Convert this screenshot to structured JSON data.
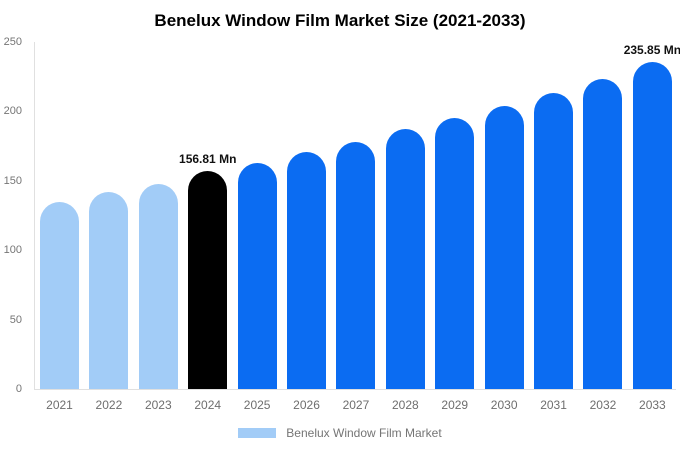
{
  "title": "Benelux Window Film Market Size (2021-2033)",
  "colors": {
    "past": "#A2CCF7",
    "current": "#000000",
    "forecast": "#0B6CF2",
    "axis_line": "#E0E0E0",
    "tick_text": "#757575",
    "label_text": "#111111"
  },
  "legend": {
    "label": "Benelux Window Film Market",
    "swatch_color": "#A2CCF7"
  },
  "chart_data": {
    "type": "bar",
    "title": "Benelux Window Film Market Size (2021-2033)",
    "xlabel": "",
    "ylabel": "",
    "unit": "Mn",
    "ylim": [
      0,
      250
    ],
    "y_ticks": [
      250,
      200,
      150,
      100,
      50,
      0
    ],
    "grid": false,
    "legend_position": "bottom",
    "categories": [
      "2021",
      "2022",
      "2023",
      "2024",
      "2025",
      "2026",
      "2027",
      "2028",
      "2029",
      "2030",
      "2031",
      "2032",
      "2033"
    ],
    "series": [
      {
        "name": "Benelux Window Film Market",
        "values": [
          135,
          142,
          148,
          156.81,
          163,
          171,
          178,
          187,
          195,
          204,
          213,
          223,
          235.85
        ]
      }
    ],
    "bar_roles": [
      "past",
      "past",
      "past",
      "current",
      "forecast",
      "forecast",
      "forecast",
      "forecast",
      "forecast",
      "forecast",
      "forecast",
      "forecast",
      "forecast"
    ],
    "data_labels": [
      null,
      null,
      null,
      "156.81 Mn",
      null,
      null,
      null,
      null,
      null,
      null,
      null,
      null,
      "235.85 Mn"
    ]
  }
}
